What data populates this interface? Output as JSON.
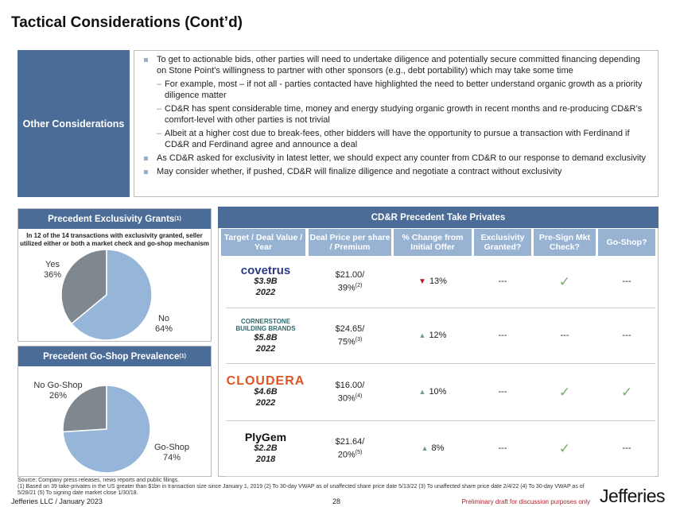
{
  "title": "Tactical Considerations (Cont’d)",
  "other": {
    "label": "Other Considerations",
    "bullets": [
      {
        "level": 1,
        "text": "To get to actionable bids, other parties will need to undertake diligence and potentially secure committed financing depending on Stone Point’s willingness to partner with other sponsors (e.g., debt portability) which may take some time"
      },
      {
        "level": 2,
        "text": "For example, most – if not all - parties contacted have highlighted the need to better understand organic growth as a priority diligence matter"
      },
      {
        "level": 2,
        "text": "CD&R has spent considerable time, money and energy studying organic growth in recent months and re-producing CD&R’s comfort-level with other parties is not trivial"
      },
      {
        "level": 2,
        "text": "Albeit at a higher cost due to break-fees, other bidders will have the opportunity to pursue a transaction with Ferdinand if CD&R and Ferdinand agree and announce a deal"
      },
      {
        "level": 1,
        "text": "As CD&R asked for exclusivity in latest letter, we should expect any counter from CD&R to our response to demand exclusivity"
      },
      {
        "level": 1,
        "text": "May consider whether, if pushed, CD&R will finalize diligence and negotiate a contract without exclusivity"
      }
    ]
  },
  "chart_data": [
    {
      "type": "pie",
      "title": "Precedent Exclusivity Grants",
      "title_sup": "(1)",
      "note": "In 12 of the 14 transactions with exclusivity granted, seller utilized either or both a market check and go-shop mechanism",
      "slices": [
        {
          "label": "Yes",
          "value": 36,
          "pct": "36%",
          "color": "#7f878f"
        },
        {
          "label": "No",
          "value": 64,
          "pct": "64%",
          "color": "#95b6d8"
        }
      ]
    },
    {
      "type": "pie",
      "title": "Precedent Go-Shop Prevalence",
      "title_sup": "(1)",
      "slices": [
        {
          "label": "No Go-Shop",
          "value": 26,
          "pct": "26%",
          "color": "#7f878f"
        },
        {
          "label": "Go-Shop",
          "value": 74,
          "pct": "74%",
          "color": "#95b6d8"
        }
      ]
    }
  ],
  "table": {
    "title": "CD&R Precedent Take Privates",
    "headers": [
      "Target / Deal Value / Year",
      "Deal Price per share / Premium",
      "% Change from Initial Offer",
      "Exclusivity Granted?",
      "Pre-Sign Mkt Check?",
      "Go-Shop?"
    ],
    "rows": [
      {
        "company": "covetrus",
        "value": "$3.9B",
        "year": "2022",
        "price": "$21.00/",
        "premium": "39%",
        "fn": "(2)",
        "change": "13%",
        "dir": "down",
        "exclusivity": "---",
        "mkt_check": "✓",
        "go_shop": "---"
      },
      {
        "company": "CORNERSTONE BUILDING BRANDS",
        "value": "$5.8B",
        "year": "2022",
        "price": "$24.65/",
        "premium": "75%",
        "fn": "(3)",
        "change": "12%",
        "dir": "up",
        "exclusivity": "---",
        "mkt_check": "---",
        "go_shop": "---"
      },
      {
        "company": "CLOUDERA",
        "value": "$4.6B",
        "year": "2022",
        "price": "$16.00/",
        "premium": "30%",
        "fn": "(4)",
        "change": "10%",
        "dir": "up",
        "exclusivity": "---",
        "mkt_check": "✓",
        "go_shop": "✓"
      },
      {
        "company": "PlyGem",
        "value": "$2.2B",
        "year": "2018",
        "price": "$21.64/",
        "premium": "20%",
        "fn": "(5)",
        "change": "8%",
        "dir": "up",
        "exclusivity": "---",
        "mkt_check": "✓",
        "go_shop": "---"
      }
    ]
  },
  "footer": {
    "source": "Source: Company press releases, news reports and public filings.",
    "notes": "(1) Based on 39 take-privates in the US greater than $1bn in transaction size since January 1, 2019 (2) To 30-day VWAP as of unaffected share price date 5/13/22 (3) To unaffected share price date 2/4/22 (4) To 30-day VWAP as of 5/28/21 (5) To signing date market close 1/30/18.",
    "left": "Jefferies LLC / January 2023",
    "page": "28",
    "draft": "Preliminary draft for discussion purposes only",
    "brand": "Jefferies"
  }
}
